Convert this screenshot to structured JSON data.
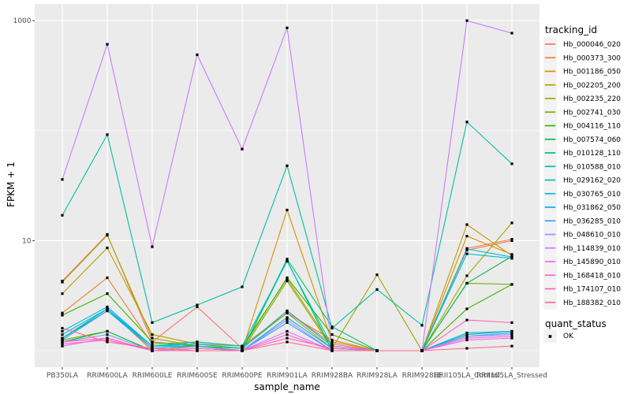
{
  "figure": {
    "bg": "#FFFFFF",
    "panel_bg": "#EBEBEB",
    "grid_color": "#FFFFFF",
    "axis_text_color": "#4D4D4D",
    "tick_mark_color": "#333333",
    "legend_key_bg": "#F2F2F2"
  },
  "chart_data": {
    "type": "line",
    "title": "",
    "xlabel": "sample_name",
    "ylabel": "FPKM + 1",
    "y_scale": "log10",
    "y_axis_tick_labels": [
      "1000",
      "10"
    ],
    "y_tick_values": [
      1000,
      10
    ],
    "y_minor_values": [
      100,
      1
    ],
    "ylim": [
      0.7,
      1400
    ],
    "grid": true,
    "legend_position": "right",
    "legend_title": "tracking_id",
    "legend2_title": "quant_status",
    "legend2_items": [
      "OK"
    ],
    "point_shape": "square",
    "point_color": "#000000",
    "categories": [
      "PB350LA",
      "RRIM600LA",
      "RRIM600LE",
      "RRIM600SE",
      "RRIM600PE",
      "RRIM901LA",
      "RRIM928BA",
      "RRIM928LA",
      "RRIM928LE",
      "RRII105LA_Control",
      "RRII105LA_Stressed"
    ],
    "series": [
      {
        "name": "Hb_000046_020",
        "color": "#F8766D",
        "values": [
          4.3,
          11.4,
          1.2,
          2.5,
          1.05,
          2.3,
          1.15,
          1.0,
          1.0,
          8.5,
          10.3
        ]
      },
      {
        "name": "Hb_000373_300",
        "color": "#EA8331",
        "values": [
          2.2,
          4.6,
          1.15,
          1.2,
          1.1,
          2.2,
          1.25,
          1.0,
          1.0,
          8.2,
          10.0
        ]
      },
      {
        "name": "Hb_001186_050",
        "color": "#D89000",
        "values": [
          1.3,
          2.4,
          1.0,
          1.1,
          1.0,
          19.0,
          1.2,
          1.0,
          1.0,
          11.0,
          7.5
        ]
      },
      {
        "name": "Hb_002205_200",
        "color": "#C09B00",
        "values": [
          3.3,
          8.6,
          1.4,
          1.15,
          1.1,
          4.5,
          1.1,
          1.0,
          1.0,
          14.0,
          7.3
        ]
      },
      {
        "name": "Hb_002235_220",
        "color": "#A3A500",
        "values": [
          4.2,
          11.2,
          1.3,
          1.1,
          1.05,
          2.2,
          1.05,
          4.9,
          1.0,
          4.8,
          14.5
        ]
      },
      {
        "name": "Hb_002741_030",
        "color": "#7CAE00",
        "values": [
          1.25,
          1.5,
          1.0,
          1.05,
          1.0,
          4.3,
          1.05,
          1.0,
          1.0,
          4.1,
          4.0
        ]
      },
      {
        "name": "Hb_004116_110",
        "color": "#39B600",
        "values": [
          2.1,
          3.3,
          1.2,
          1.1,
          1.05,
          4.6,
          1.4,
          1.0,
          1.0,
          2.4,
          4.0
        ]
      },
      {
        "name": "Hb_007574_060",
        "color": "#00BB4E",
        "values": [
          1.2,
          1.5,
          1.0,
          1.0,
          1.0,
          6.6,
          1.0,
          1.0,
          1.0,
          4.1,
          7.2
        ]
      },
      {
        "name": "Hb_010128_110",
        "color": "#00BF7D",
        "values": [
          1.3,
          2.3,
          1.1,
          1.1,
          1.0,
          6.8,
          1.65,
          1.0,
          1.0,
          1.4,
          1.5
        ]
      },
      {
        "name": "Hb_010588_010",
        "color": "#00C1A3",
        "values": [
          17.0,
          92.0,
          1.8,
          2.6,
          3.8,
          48.0,
          1.6,
          3.6,
          1.7,
          120.0,
          50.0
        ]
      },
      {
        "name": "Hb_029162_020",
        "color": "#00BFC4",
        "values": [
          1.4,
          2.4,
          1.1,
          1.2,
          1.1,
          6.5,
          1.1,
          1.0,
          1.0,
          7.6,
          6.9
        ]
      },
      {
        "name": "Hb_030765_010",
        "color": "#00BAE0",
        "values": [
          1.5,
          2.5,
          1.1,
          1.15,
          1.05,
          2.3,
          1.1,
          1.0,
          1.0,
          8.4,
          7.1
        ]
      },
      {
        "name": "Hb_031862_050",
        "color": "#00B0F6",
        "values": [
          1.3,
          2.4,
          1.05,
          1.1,
          1.0,
          2.0,
          1.05,
          1.0,
          1.0,
          1.45,
          1.5
        ]
      },
      {
        "name": "Hb_036285_010",
        "color": "#35A2FF",
        "values": [
          1.25,
          2.3,
          1.05,
          1.1,
          1.0,
          1.8,
          1.0,
          1.0,
          1.0,
          1.35,
          1.45
        ]
      },
      {
        "name": "Hb_048610_010",
        "color": "#9590FF",
        "values": [
          1.2,
          1.4,
          1.0,
          1.05,
          1.0,
          1.9,
          1.0,
          1.0,
          1.0,
          1.35,
          1.4
        ]
      },
      {
        "name": "Hb_114839_010",
        "color": "#C77CFF",
        "values": [
          36.0,
          610.0,
          8.8,
          490.0,
          68.0,
          860.0,
          1.1,
          1.0,
          1.0,
          1000.0,
          770.0
        ]
      },
      {
        "name": "Hb_145890_010",
        "color": "#E76BF3",
        "values": [
          1.1,
          1.3,
          1.0,
          1.0,
          1.0,
          1.5,
          1.0,
          1.0,
          1.0,
          1.3,
          1.35
        ]
      },
      {
        "name": "Hb_168418_010",
        "color": "#FA62DB",
        "values": [
          1.15,
          1.25,
          1.0,
          1.0,
          1.0,
          1.4,
          1.0,
          1.0,
          1.0,
          1.25,
          1.3
        ]
      },
      {
        "name": "Hb_174107_010",
        "color": "#FF62BC",
        "values": [
          1.2,
          1.3,
          1.0,
          1.05,
          1.0,
          1.3,
          1.05,
          1.0,
          1.0,
          1.9,
          1.8
        ]
      },
      {
        "name": "Hb_188382_010",
        "color": "#FF6C90",
        "values": [
          1.6,
          1.2,
          1.05,
          1.0,
          1.0,
          1.2,
          1.0,
          1.0,
          1.0,
          1.05,
          1.1
        ]
      }
    ]
  }
}
